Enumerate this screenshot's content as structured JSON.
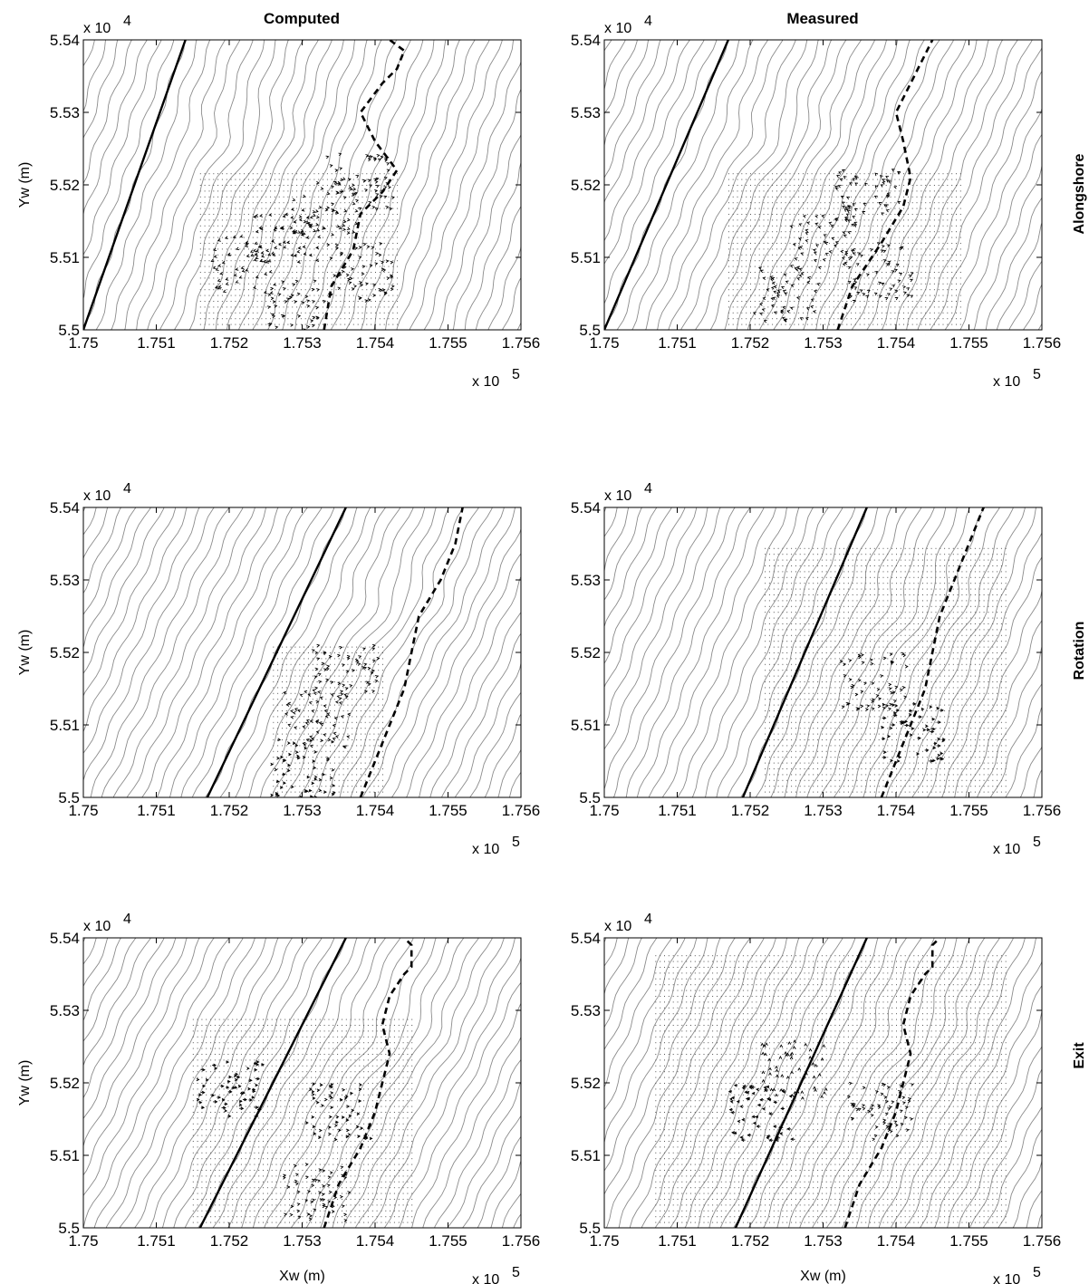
{
  "column_titles": [
    "Computed",
    "Measured"
  ],
  "row_labels": [
    "Alongshore",
    "Rotation",
    "Exit"
  ],
  "x_multiplier": "x 10",
  "x_exponent": "5",
  "y_multiplier": "x 10",
  "y_exponent": "4",
  "xlabel": "Xw (m)",
  "ylabel": "Yw (m)",
  "colors": {
    "contour": "#8c8c8c",
    "vector": "#000000",
    "grid_dot": "#555555"
  },
  "chart_data": [
    {
      "type": "vector-field",
      "panel": "Alongshore-Computed",
      "xlim": [
        1.75,
        1.756
      ],
      "ylim": [
        5.5,
        5.54
      ],
      "xticks": [
        "1.75",
        "1.751",
        "1.752",
        "1.753",
        "1.754",
        "1.755",
        "1.756"
      ],
      "yticks": [
        "5.5",
        "5.51",
        "5.52",
        "5.53",
        "5.54"
      ],
      "solid_line": [
        [
          1.75,
          5.5
        ],
        [
          1.7514,
          5.54
        ]
      ],
      "dashed_line": [
        [
          1.7533,
          5.5
        ],
        [
          1.7534,
          5.506
        ],
        [
          1.7537,
          5.511
        ],
        [
          1.7538,
          5.516
        ],
        [
          1.7541,
          5.519
        ],
        [
          1.7543,
          5.522
        ],
        [
          1.754,
          5.526
        ],
        [
          1.7538,
          5.53
        ],
        [
          1.7541,
          5.534
        ],
        [
          1.7543,
          5.536
        ],
        [
          1.7544,
          5.5385
        ],
        [
          1.7542,
          5.54
        ]
      ],
      "grid_region": [
        1.7516,
        1.7543,
        5.5,
        5.522
      ],
      "flow": [
        {
          "x": 1.7538,
          "y": 5.5205,
          "u": 0.0001,
          "v": 0.0004
        },
        {
          "x": 1.7533,
          "y": 5.517,
          "u": 0.0001,
          "v": -0.0003
        },
        {
          "x": 1.7528,
          "y": 5.513,
          "u": -0.00015,
          "v": -0.0003
        },
        {
          "x": 1.7522,
          "y": 5.509,
          "u": -0.0001,
          "v": -0.0004
        },
        {
          "x": 1.753,
          "y": 5.503,
          "u": 0.0001,
          "v": 0.0003
        },
        {
          "x": 1.7538,
          "y": 5.508,
          "u": 0.0001,
          "v": 0.0002
        }
      ]
    },
    {
      "type": "vector-field",
      "panel": "Alongshore-Measured",
      "xlim": [
        1.75,
        1.756
      ],
      "ylim": [
        5.5,
        5.54
      ],
      "xticks": [
        "1.75",
        "1.751",
        "1.752",
        "1.753",
        "1.754",
        "1.755",
        "1.756"
      ],
      "yticks": [
        "5.5",
        "5.51",
        "5.52",
        "5.53",
        "5.54"
      ],
      "solid_line": [
        [
          1.75,
          5.5
        ],
        [
          1.7517,
          5.54
        ]
      ],
      "dashed_line": [
        [
          1.7532,
          5.5
        ],
        [
          1.7534,
          5.506
        ],
        [
          1.7538,
          5.512
        ],
        [
          1.7541,
          5.517
        ],
        [
          1.7542,
          5.521
        ],
        [
          1.7541,
          5.526
        ],
        [
          1.754,
          5.53
        ],
        [
          1.7542,
          5.534
        ],
        [
          1.7543,
          5.536
        ],
        [
          1.7544,
          5.538
        ],
        [
          1.7545,
          5.54
        ]
      ],
      "grid_region": [
        1.7517,
        1.7549,
        5.5,
        5.522
      ],
      "flow": [
        {
          "x": 1.7536,
          "y": 5.519,
          "u": -5e-05,
          "v": 0.0004
        },
        {
          "x": 1.753,
          "y": 5.512,
          "u": -0.0001,
          "v": 0.0004
        },
        {
          "x": 1.7525,
          "y": 5.505,
          "u": -0.0001,
          "v": 0.0004
        },
        {
          "x": 1.7538,
          "y": 5.508,
          "u": 5e-05,
          "v": 0.0003
        }
      ]
    },
    {
      "type": "vector-field",
      "panel": "Rotation-Computed",
      "xlim": [
        1.75,
        1.756
      ],
      "ylim": [
        5.5,
        5.54
      ],
      "xticks": [
        "1.75",
        "1.751",
        "1.752",
        "1.753",
        "1.754",
        "1.755",
        "1.756"
      ],
      "yticks": [
        "5.5",
        "5.51",
        "5.52",
        "5.53",
        "5.54"
      ],
      "solid_line": [
        [
          1.7517,
          5.5
        ],
        [
          1.7536,
          5.54
        ]
      ],
      "dashed_line": [
        [
          1.7538,
          5.5
        ],
        [
          1.754,
          5.505
        ],
        [
          1.7542,
          5.51
        ],
        [
          1.7544,
          5.515
        ],
        [
          1.7545,
          5.52
        ],
        [
          1.7546,
          5.525
        ],
        [
          1.7549,
          5.53
        ],
        [
          1.7551,
          5.535
        ],
        [
          1.7552,
          5.54
        ]
      ],
      "grid_region": [
        1.7526,
        1.7541,
        5.5,
        5.521
      ],
      "flow": [
        {
          "x": 1.7536,
          "y": 5.517,
          "u": 0.0001,
          "v": 0.0003
        },
        {
          "x": 1.7532,
          "y": 5.511,
          "u": -0.0001,
          "v": 0.0003
        },
        {
          "x": 1.753,
          "y": 5.504,
          "u": 0.0002,
          "v": -0.0001
        }
      ]
    },
    {
      "type": "vector-field",
      "panel": "Rotation-Measured",
      "xlim": [
        1.75,
        1.756
      ],
      "ylim": [
        5.5,
        5.54
      ],
      "xticks": [
        "1.75",
        "1.751",
        "1.752",
        "1.753",
        "1.754",
        "1.755",
        "1.756"
      ],
      "yticks": [
        "5.5",
        "5.51",
        "5.52",
        "5.53",
        "5.54"
      ],
      "solid_line": [
        [
          1.7519,
          5.5
        ],
        [
          1.7536,
          5.54
        ]
      ],
      "dashed_line": [
        [
          1.7538,
          5.5
        ],
        [
          1.754,
          5.505
        ],
        [
          1.7542,
          5.51
        ],
        [
          1.7544,
          5.515
        ],
        [
          1.7545,
          5.52
        ],
        [
          1.7546,
          5.525
        ],
        [
          1.7548,
          5.53
        ],
        [
          1.755,
          5.535
        ],
        [
          1.7552,
          5.54
        ]
      ],
      "grid_region": [
        1.7522,
        1.7555,
        5.5,
        5.535
      ],
      "flow": [
        {
          "x": 1.7537,
          "y": 5.516,
          "u": 0.0001,
          "v": 0.0002
        },
        {
          "x": 1.7542,
          "y": 5.509,
          "u": 0.0003,
          "v": 0.0
        }
      ]
    },
    {
      "type": "vector-field",
      "panel": "Exit-Computed",
      "xlim": [
        1.75,
        1.756
      ],
      "ylim": [
        5.5,
        5.54
      ],
      "xticks": [
        "1.75",
        "1.751",
        "1.752",
        "1.753",
        "1.754",
        "1.755",
        "1.756"
      ],
      "yticks": [
        "5.5",
        "5.51",
        "5.52",
        "5.53",
        "5.54"
      ],
      "solid_line": [
        [
          1.7516,
          5.5
        ],
        [
          1.7536,
          5.54
        ]
      ],
      "dashed_line": [
        [
          1.7533,
          5.5
        ],
        [
          1.7535,
          5.506
        ],
        [
          1.7538,
          5.511
        ],
        [
          1.754,
          5.516
        ],
        [
          1.7541,
          5.52
        ],
        [
          1.7542,
          5.524
        ],
        [
          1.7541,
          5.528
        ],
        [
          1.7542,
          5.532
        ],
        [
          1.7544,
          5.535
        ],
        [
          1.7545,
          5.536
        ],
        [
          1.7545,
          5.539
        ],
        [
          1.7544,
          5.54
        ]
      ],
      "grid_region": [
        1.7515,
        1.7545,
        5.5,
        5.529
      ],
      "flow": [
        {
          "x": 1.752,
          "y": 5.519,
          "u": 0.0003,
          "v": -0.0001
        },
        {
          "x": 1.7535,
          "y": 5.516,
          "u": 0.0002,
          "v": 0.0001
        },
        {
          "x": 1.7532,
          "y": 5.505,
          "u": 0.0001,
          "v": 0.0002
        }
      ]
    },
    {
      "type": "vector-field",
      "panel": "Exit-Measured",
      "xlim": [
        1.75,
        1.756
      ],
      "ylim": [
        5.5,
        5.54
      ],
      "xticks": [
        "1.75",
        "1.751",
        "1.752",
        "1.753",
        "1.754",
        "1.755",
        "1.756"
      ],
      "yticks": [
        "5.5",
        "5.51",
        "5.52",
        "5.53",
        "5.54"
      ],
      "solid_line": [
        [
          1.7518,
          5.5
        ],
        [
          1.7536,
          5.54
        ]
      ],
      "dashed_line": [
        [
          1.7533,
          5.5
        ],
        [
          1.7535,
          5.506
        ],
        [
          1.7538,
          5.511
        ],
        [
          1.754,
          5.516
        ],
        [
          1.7541,
          5.52
        ],
        [
          1.7542,
          5.524
        ],
        [
          1.7541,
          5.528
        ],
        [
          1.7542,
          5.532
        ],
        [
          1.7544,
          5.535
        ],
        [
          1.7545,
          5.536
        ],
        [
          1.7545,
          5.539
        ],
        [
          1.7546,
          5.54
        ]
      ],
      "grid_region": [
        1.7507,
        1.7555,
        5.5,
        5.538
      ],
      "flow": [
        {
          "x": 1.7522,
          "y": 5.516,
          "u": -0.0003,
          "v": 0.0002
        },
        {
          "x": 1.7538,
          "y": 5.516,
          "u": 0.0001,
          "v": 0.0003
        },
        {
          "x": 1.7526,
          "y": 5.522,
          "u": 0.0,
          "v": 0.0003
        }
      ]
    }
  ]
}
